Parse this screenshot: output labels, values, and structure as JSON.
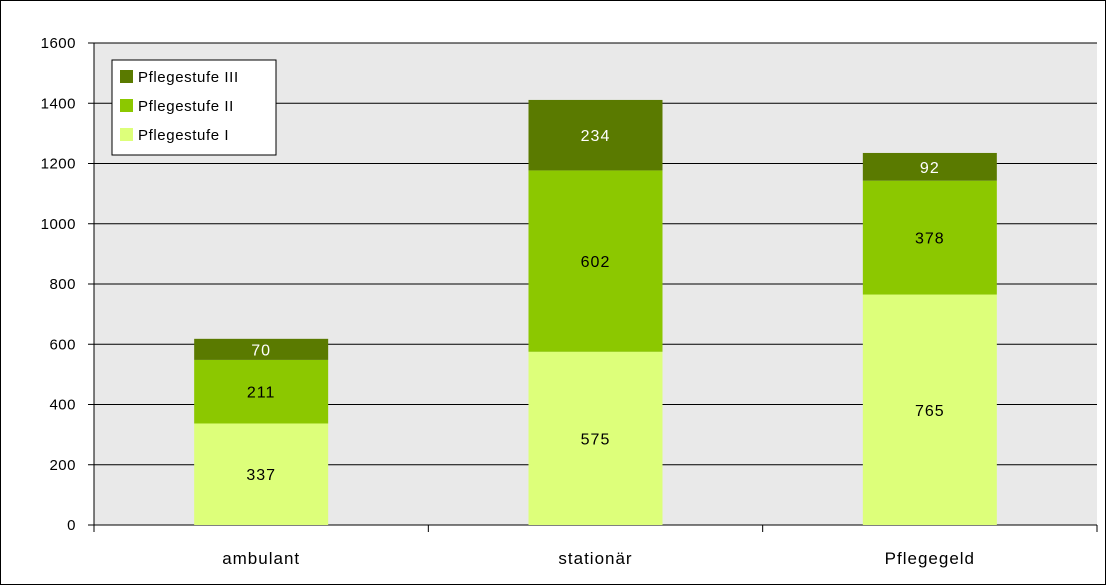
{
  "chart_data": {
    "type": "bar",
    "stacked": true,
    "categories": [
      "ambulant",
      "stationär",
      "Pflegegeld"
    ],
    "series": [
      {
        "name": "Pflegestufe I",
        "values": [
          337,
          575,
          765
        ],
        "color": "#ddff7a",
        "label_color": "#000000"
      },
      {
        "name": "Pflegestufe II",
        "values": [
          211,
          602,
          378
        ],
        "color": "#8cc800",
        "label_color": "#000000"
      },
      {
        "name": "Pflegestufe III",
        "values": [
          70,
          234,
          92
        ],
        "color": "#5a7a00",
        "label_color": "#ffffff"
      }
    ],
    "ylim": [
      0,
      1600
    ],
    "yticks": [
      0,
      200,
      400,
      600,
      800,
      1000,
      1200,
      1400,
      1600
    ],
    "grid": true,
    "legend_position": "top-left",
    "plot_background": "#e9e9e9",
    "title": "",
    "xlabel": "",
    "ylabel": ""
  }
}
